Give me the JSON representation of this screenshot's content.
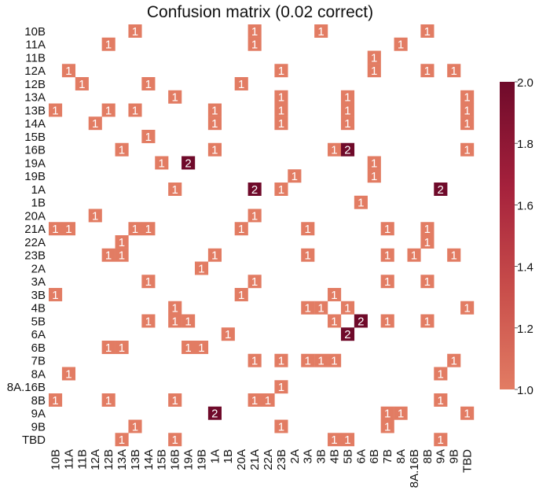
{
  "chart_data": {
    "type": "heatmap",
    "title": "Confusion matrix (0.02 correct)",
    "labels": [
      "10B",
      "11A",
      "11B",
      "12A",
      "12B",
      "13A",
      "13B",
      "14A",
      "15B",
      "16B",
      "19A",
      "19B",
      "1A",
      "1B",
      "20A",
      "21A",
      "22A",
      "23B",
      "2A",
      "3A",
      "3B",
      "4B",
      "5B",
      "6A",
      "6B",
      "7B",
      "8A",
      "8A.16B",
      "8B",
      "9A",
      "9B",
      "TBD"
    ],
    "cells": [
      {
        "row": "10B",
        "col": "13B",
        "value": 1
      },
      {
        "row": "10B",
        "col": "21A",
        "value": 1
      },
      {
        "row": "10B",
        "col": "3B",
        "value": 1
      },
      {
        "row": "10B",
        "col": "8B",
        "value": 1
      },
      {
        "row": "11A",
        "col": "12B",
        "value": 1
      },
      {
        "row": "11A",
        "col": "21A",
        "value": 1
      },
      {
        "row": "11A",
        "col": "8A",
        "value": 1
      },
      {
        "row": "11B",
        "col": "6B",
        "value": 1
      },
      {
        "row": "12A",
        "col": "11A",
        "value": 1
      },
      {
        "row": "12A",
        "col": "23B",
        "value": 1
      },
      {
        "row": "12A",
        "col": "6B",
        "value": 1
      },
      {
        "row": "12A",
        "col": "8B",
        "value": 1
      },
      {
        "row": "12A",
        "col": "9B",
        "value": 1
      },
      {
        "row": "12B",
        "col": "11B",
        "value": 1
      },
      {
        "row": "12B",
        "col": "14A",
        "value": 1
      },
      {
        "row": "12B",
        "col": "20A",
        "value": 1
      },
      {
        "row": "13A",
        "col": "16B",
        "value": 1
      },
      {
        "row": "13A",
        "col": "23B",
        "value": 1
      },
      {
        "row": "13A",
        "col": "5B",
        "value": 1
      },
      {
        "row": "13A",
        "col": "TBD",
        "value": 1
      },
      {
        "row": "13B",
        "col": "10B",
        "value": 1
      },
      {
        "row": "13B",
        "col": "12B",
        "value": 1
      },
      {
        "row": "13B",
        "col": "13B",
        "value": 1
      },
      {
        "row": "13B",
        "col": "1A",
        "value": 1
      },
      {
        "row": "13B",
        "col": "23B",
        "value": 1
      },
      {
        "row": "13B",
        "col": "5B",
        "value": 1
      },
      {
        "row": "13B",
        "col": "TBD",
        "value": 1
      },
      {
        "row": "14A",
        "col": "12A",
        "value": 1
      },
      {
        "row": "14A",
        "col": "1A",
        "value": 1
      },
      {
        "row": "14A",
        "col": "23B",
        "value": 1
      },
      {
        "row": "14A",
        "col": "5B",
        "value": 1
      },
      {
        "row": "14A",
        "col": "TBD",
        "value": 1
      },
      {
        "row": "15B",
        "col": "14A",
        "value": 1
      },
      {
        "row": "16B",
        "col": "13A",
        "value": 1
      },
      {
        "row": "16B",
        "col": "1A",
        "value": 1
      },
      {
        "row": "16B",
        "col": "4B",
        "value": 1
      },
      {
        "row": "16B",
        "col": "5B",
        "value": 2
      },
      {
        "row": "16B",
        "col": "TBD",
        "value": 1
      },
      {
        "row": "19A",
        "col": "15B",
        "value": 1
      },
      {
        "row": "19A",
        "col": "19A",
        "value": 2
      },
      {
        "row": "19A",
        "col": "6B",
        "value": 1
      },
      {
        "row": "19B",
        "col": "2A",
        "value": 1
      },
      {
        "row": "19B",
        "col": "6B",
        "value": 1
      },
      {
        "row": "1A",
        "col": "16B",
        "value": 1
      },
      {
        "row": "1A",
        "col": "21A",
        "value": 2
      },
      {
        "row": "1A",
        "col": "23B",
        "value": 1
      },
      {
        "row": "1A",
        "col": "9A",
        "value": 2
      },
      {
        "row": "1B",
        "col": "6A",
        "value": 1
      },
      {
        "row": "20A",
        "col": "12A",
        "value": 1
      },
      {
        "row": "20A",
        "col": "21A",
        "value": 1
      },
      {
        "row": "21A",
        "col": "10B",
        "value": 1
      },
      {
        "row": "21A",
        "col": "11A",
        "value": 1
      },
      {
        "row": "21A",
        "col": "13B",
        "value": 1
      },
      {
        "row": "21A",
        "col": "14A",
        "value": 1
      },
      {
        "row": "21A",
        "col": "20A",
        "value": 1
      },
      {
        "row": "21A",
        "col": "3A",
        "value": 1
      },
      {
        "row": "21A",
        "col": "7B",
        "value": 1
      },
      {
        "row": "21A",
        "col": "8B",
        "value": 1
      },
      {
        "row": "22A",
        "col": "13A",
        "value": 1
      },
      {
        "row": "22A",
        "col": "8B",
        "value": 1
      },
      {
        "row": "23B",
        "col": "12B",
        "value": 1
      },
      {
        "row": "23B",
        "col": "13A",
        "value": 1
      },
      {
        "row": "23B",
        "col": "1A",
        "value": 1
      },
      {
        "row": "23B",
        "col": "3A",
        "value": 1
      },
      {
        "row": "23B",
        "col": "7B",
        "value": 1
      },
      {
        "row": "23B",
        "col": "8A.16B",
        "value": 1
      },
      {
        "row": "23B",
        "col": "9B",
        "value": 1
      },
      {
        "row": "2A",
        "col": "19B",
        "value": 1
      },
      {
        "row": "3A",
        "col": "14A",
        "value": 1
      },
      {
        "row": "3A",
        "col": "21A",
        "value": 1
      },
      {
        "row": "3A",
        "col": "7B",
        "value": 1
      },
      {
        "row": "3A",
        "col": "8B",
        "value": 1
      },
      {
        "row": "3B",
        "col": "10B",
        "value": 1
      },
      {
        "row": "3B",
        "col": "20A",
        "value": 1
      },
      {
        "row": "3B",
        "col": "4B",
        "value": 1
      },
      {
        "row": "4B",
        "col": "16B",
        "value": 1
      },
      {
        "row": "4B",
        "col": "3A",
        "value": 1
      },
      {
        "row": "4B",
        "col": "3B",
        "value": 1
      },
      {
        "row": "4B",
        "col": "5B",
        "value": 1
      },
      {
        "row": "4B",
        "col": "TBD",
        "value": 1
      },
      {
        "row": "5B",
        "col": "14A",
        "value": 1
      },
      {
        "row": "5B",
        "col": "16B",
        "value": 1
      },
      {
        "row": "5B",
        "col": "19A",
        "value": 1
      },
      {
        "row": "5B",
        "col": "4B",
        "value": 1
      },
      {
        "row": "5B",
        "col": "6A",
        "value": 2
      },
      {
        "row": "5B",
        "col": "7B",
        "value": 1
      },
      {
        "row": "5B",
        "col": "8B",
        "value": 1
      },
      {
        "row": "6A",
        "col": "1B",
        "value": 1
      },
      {
        "row": "6A",
        "col": "5B",
        "value": 2
      },
      {
        "row": "6B",
        "col": "12B",
        "value": 1
      },
      {
        "row": "6B",
        "col": "13A",
        "value": 1
      },
      {
        "row": "6B",
        "col": "19A",
        "value": 1
      },
      {
        "row": "6B",
        "col": "19B",
        "value": 1
      },
      {
        "row": "7B",
        "col": "21A",
        "value": 1
      },
      {
        "row": "7B",
        "col": "23B",
        "value": 1
      },
      {
        "row": "7B",
        "col": "3A",
        "value": 1
      },
      {
        "row": "7B",
        "col": "3B",
        "value": 1
      },
      {
        "row": "7B",
        "col": "4B",
        "value": 1
      },
      {
        "row": "7B",
        "col": "9B",
        "value": 1
      },
      {
        "row": "8A",
        "col": "11A",
        "value": 1
      },
      {
        "row": "8A",
        "col": "9A",
        "value": 1
      },
      {
        "row": "8A.16B",
        "col": "23B",
        "value": 1
      },
      {
        "row": "8B",
        "col": "10B",
        "value": 1
      },
      {
        "row": "8B",
        "col": "12B",
        "value": 1
      },
      {
        "row": "8B",
        "col": "16B",
        "value": 1
      },
      {
        "row": "8B",
        "col": "21A",
        "value": 1
      },
      {
        "row": "8B",
        "col": "22A",
        "value": 1
      },
      {
        "row": "8B",
        "col": "9A",
        "value": 1
      },
      {
        "row": "9A",
        "col": "1A",
        "value": 2
      },
      {
        "row": "9A",
        "col": "7B",
        "value": 1
      },
      {
        "row": "9A",
        "col": "8A",
        "value": 1
      },
      {
        "row": "9A",
        "col": "TBD",
        "value": 1
      },
      {
        "row": "9B",
        "col": "13B",
        "value": 1
      },
      {
        "row": "9B",
        "col": "23B",
        "value": 1
      },
      {
        "row": "9B",
        "col": "7B",
        "value": 1
      },
      {
        "row": "TBD",
        "col": "13A",
        "value": 1
      },
      {
        "row": "TBD",
        "col": "16B",
        "value": 1
      },
      {
        "row": "TBD",
        "col": "4B",
        "value": 1
      },
      {
        "row": "TBD",
        "col": "5B",
        "value": 1
      },
      {
        "row": "TBD",
        "col": "9A",
        "value": 1
      }
    ],
    "colorbar": {
      "min": 1.0,
      "max": 2.0,
      "ticks": [
        "1.0",
        "1.2",
        "1.4",
        "1.6",
        "1.8",
        "2.0"
      ],
      "colors": [
        "#e27c63",
        "#c84d4a",
        "#a5213c",
        "#6f0a2a"
      ]
    },
    "grid": false
  }
}
